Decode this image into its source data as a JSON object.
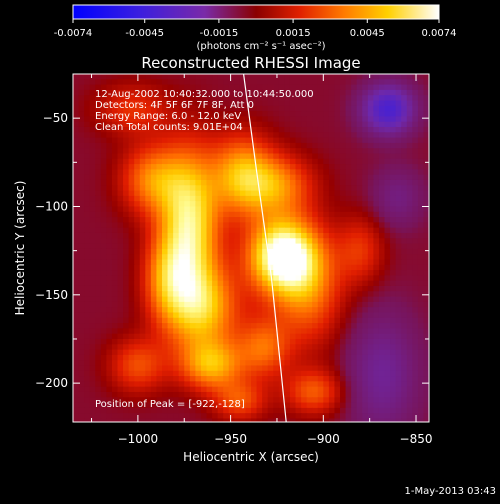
{
  "colorbar": {
    "ticks": [
      "-0.0074",
      "-0.0045",
      "-0.0015",
      "0.0015",
      "0.0045",
      "0.0074"
    ],
    "unit_label": "(photons cm⁻² s⁻¹ asec⁻²)",
    "range": [
      -0.0074,
      0.0074
    ]
  },
  "title": "Reconstructed RHESSI Image",
  "info_lines": [
    "12-Aug-2002 10:40:32.000 to 10:44:50.000",
    "Detectors: 4F 5F 6F 7F 8F, Att 0",
    "Energy Range: 6.0 - 12.0 keV",
    "Clean     Total counts: 9.01E+04"
  ],
  "peak_label": "Position of Peak = [-922,-128]",
  "footer_date": "1-May-2013 03:43",
  "chart_data": {
    "type": "heatmap",
    "title": "Reconstructed RHESSI Image",
    "xlabel": "Heliocentric X (arcsec)",
    "ylabel": "Heliocentric Y (arcsec)",
    "xlim": [
      -1035,
      -843
    ],
    "ylim": [
      -222,
      -25
    ],
    "x_ticks": [
      -1000,
      -950,
      -900,
      -850
    ],
    "y_ticks": [
      -50,
      -100,
      -150,
      -200
    ],
    "peak": [
      -922,
      -128
    ],
    "colormap": "rhessi-blue-purple-red-yellow-white",
    "limb_curve": [
      [
        -943,
        -25
      ],
      [
        -936,
        -80
      ],
      [
        -928,
        -140
      ],
      [
        -920,
        -222
      ]
    ],
    "sources": [
      {
        "x": -922,
        "y": -128,
        "amp": 1.0,
        "sx": 13,
        "sy": 15
      },
      {
        "x": -972,
        "y": -112,
        "amp": 0.8,
        "sx": 11,
        "sy": 30
      },
      {
        "x": -965,
        "y": -158,
        "amp": 0.58,
        "sx": 14,
        "sy": 17
      },
      {
        "x": -960,
        "y": -190,
        "amp": 0.55,
        "sx": 12,
        "sy": 10
      },
      {
        "x": -944,
        "y": -82,
        "amp": 0.55,
        "sx": 12,
        "sy": 16
      },
      {
        "x": -992,
        "y": -85,
        "amp": 0.48,
        "sx": 12,
        "sy": 14
      },
      {
        "x": -925,
        "y": -88,
        "amp": 0.45,
        "sx": 14,
        "sy": 12
      },
      {
        "x": -908,
        "y": -148,
        "amp": 0.42,
        "sx": 13,
        "sy": 22
      },
      {
        "x": -905,
        "y": -205,
        "amp": 0.38,
        "sx": 11,
        "sy": 9
      },
      {
        "x": -1000,
        "y": -190,
        "amp": 0.35,
        "sx": 11,
        "sy": 11
      },
      {
        "x": -1003,
        "y": -45,
        "amp": 0.28,
        "sx": 14,
        "sy": 10
      },
      {
        "x": -985,
        "y": -140,
        "amp": 0.4,
        "sx": 9,
        "sy": 18
      },
      {
        "x": -945,
        "y": -210,
        "amp": 0.35,
        "sx": 10,
        "sy": 8
      },
      {
        "x": -932,
        "y": -180,
        "amp": 0.4,
        "sx": 10,
        "sy": 12
      },
      {
        "x": -880,
        "y": -125,
        "amp": 0.28,
        "sx": 9,
        "sy": 14
      },
      {
        "x": -868,
        "y": -195,
        "amp": -0.28,
        "sx": 14,
        "sy": 25
      },
      {
        "x": -865,
        "y": -45,
        "amp": -0.6,
        "sx": 10,
        "sy": 10
      },
      {
        "x": -860,
        "y": -95,
        "amp": -0.2,
        "sx": 10,
        "sy": 12
      }
    ],
    "background_level": 0.06
  }
}
